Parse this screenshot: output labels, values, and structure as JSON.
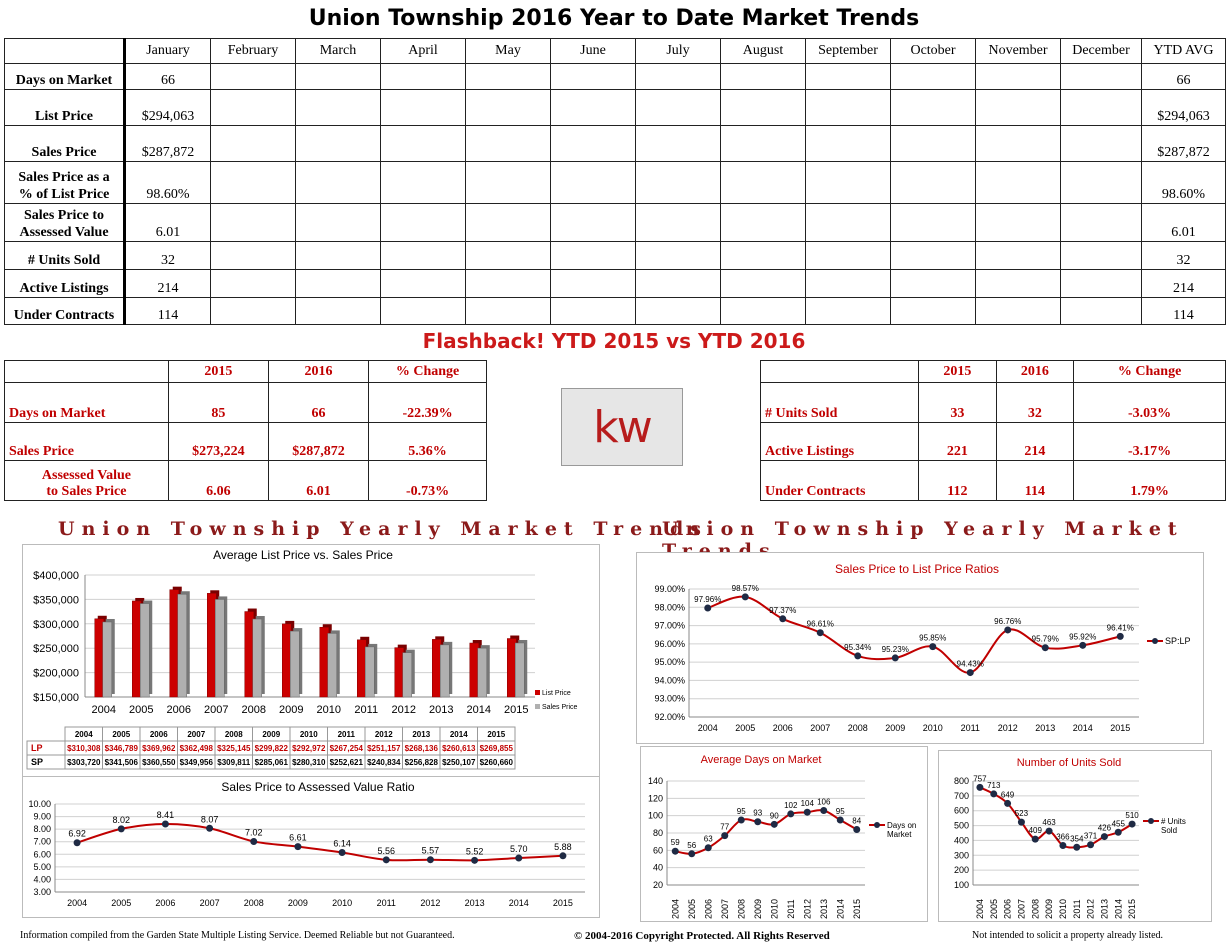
{
  "title": "Union Township 2016 Year to Date Market Trends",
  "main_table": {
    "headers": [
      "January",
      "February",
      "March",
      "April",
      "May",
      "June",
      "July",
      "August",
      "September",
      "October",
      "November",
      "December",
      "YTD AVG"
    ],
    "rows": [
      {
        "label_lines": [
          "Days on Market"
        ],
        "jan": "66",
        "ytd": "66"
      },
      {
        "label_lines": [
          "List Price"
        ],
        "jan": "$294,063",
        "ytd": "$294,063"
      },
      {
        "label_lines": [
          "Sales Price"
        ],
        "jan": "$287,872",
        "ytd": "$287,872"
      },
      {
        "label_lines": [
          "Sales Price as a",
          "% of List Price"
        ],
        "jan": "98.60%",
        "ytd": "98.60%"
      },
      {
        "label_lines": [
          "Sales Price to",
          "Assessed Value"
        ],
        "jan": "6.01",
        "ytd": "6.01"
      },
      {
        "label_lines": [
          "# Units Sold"
        ],
        "jan": "32",
        "ytd": "32"
      },
      {
        "label_lines": [
          "Active Listings"
        ],
        "jan": "214",
        "ytd": "214"
      },
      {
        "label_lines": [
          "Under Contracts"
        ],
        "jan": "114",
        "ytd": "114"
      }
    ]
  },
  "flashback": {
    "title": "Flashback!  YTD 2015 vs YTD 2016",
    "headers": [
      "2015",
      "2016",
      "% Change"
    ],
    "left": [
      {
        "label_lines": [
          "Days on Market"
        ],
        "y2015": "85",
        "y2016": "66",
        "change": "-22.39%"
      },
      {
        "label_lines": [
          "Sales Price"
        ],
        "y2015": "$273,224",
        "y2016": "$287,872",
        "change": "5.36%"
      },
      {
        "label_lines": [
          "Assessed Value",
          "to Sales Price"
        ],
        "y2015": "6.06",
        "y2016": "6.01",
        "change": "-0.73%"
      }
    ],
    "right": [
      {
        "label_lines": [
          "# Units Sold"
        ],
        "y2015": "33",
        "y2016": "32",
        "change": "-3.03%"
      },
      {
        "label_lines": [
          "Active Listings"
        ],
        "y2015": "221",
        "y2016": "214",
        "change": "-3.17%"
      },
      {
        "label_lines": [
          "Under Contracts"
        ],
        "y2015": "112",
        "y2016": "114",
        "change": "1.79%"
      }
    ],
    "logo_text": "kw"
  },
  "section_title_left": "Union Township Yearly Market Trends",
  "section_title_right": "Union Township Yearly Market Trends",
  "chart_data": [
    {
      "type": "bar",
      "title": "Average List Price vs. Sales Price",
      "categories": [
        "2004",
        "2005",
        "2006",
        "2007",
        "2008",
        "2009",
        "2010",
        "2011",
        "2012",
        "2013",
        "2014",
        "2015"
      ],
      "series": [
        {
          "name": "List Price",
          "color": "#cc0000",
          "values": [
            310308,
            346789,
            369962,
            362498,
            325145,
            299822,
            292972,
            267254,
            251157,
            268136,
            260613,
            269855
          ],
          "labels": [
            "$310,308",
            "$346,789",
            "$369,962",
            "$362,498",
            "$325,145",
            "$299,822",
            "$292,972",
            "$267,254",
            "$251,157",
            "$268,136",
            "$260,613",
            "$269,855"
          ]
        },
        {
          "name": "Sales Price",
          "color": "#b0b0b0",
          "values": [
            303720,
            341506,
            360550,
            349956,
            309811,
            285061,
            280310,
            252621,
            240834,
            256828,
            250107,
            260660
          ],
          "labels": [
            "$303,720",
            "$341,506",
            "$360,550",
            "$349,956",
            "$309,811",
            "$285,061",
            "$280,310",
            "$252,621",
            "$240,834",
            "$256,828",
            "$250,107",
            "$260,660"
          ]
        }
      ],
      "yticks": [
        "$150,000",
        "$200,000",
        "$250,000",
        "$300,000",
        "$350,000",
        "$400,000"
      ],
      "ylim": [
        150000,
        400000
      ],
      "table_row_labels": [
        "LP",
        "SP"
      ],
      "legend": "right"
    },
    {
      "type": "line",
      "title": "Sales Price to Assessed Value Ratio",
      "categories": [
        "2004",
        "2005",
        "2006",
        "2007",
        "2008",
        "2009",
        "2010",
        "2011",
        "2012",
        "2013",
        "2014",
        "2015"
      ],
      "values": [
        6.92,
        8.02,
        8.41,
        8.07,
        7.02,
        6.61,
        6.14,
        5.56,
        5.57,
        5.52,
        5.7,
        5.88
      ],
      "labels": [
        "6.92",
        "8.02",
        "8.41",
        "8.07",
        "7.02",
        "6.61",
        "6.14",
        "5.56",
        "5.57",
        "5.52",
        "5.70",
        "5.88"
      ],
      "yticks": [
        "3.00",
        "4.00",
        "5.00",
        "6.00",
        "7.00",
        "8.00",
        "9.00",
        "10.00"
      ],
      "ylim": [
        3,
        10
      ]
    },
    {
      "type": "line",
      "title": "Sales Price to List Price Ratios",
      "categories": [
        "2004",
        "2005",
        "2006",
        "2007",
        "2008",
        "2009",
        "2010",
        "2011",
        "2012",
        "2013",
        "2014",
        "2015"
      ],
      "values": [
        97.96,
        98.57,
        97.37,
        96.61,
        95.34,
        95.23,
        95.85,
        94.43,
        96.76,
        95.79,
        95.92,
        96.41
      ],
      "labels": [
        "97.96%",
        "98.57%",
        "97.37%",
        "96.61%",
        "95.34%",
        "95.23%",
        "95.85%",
        "94.43%",
        "96.76%",
        "95.79%",
        "95.92%",
        "96.41%"
      ],
      "yticks": [
        "92.00%",
        "93.00%",
        "94.00%",
        "95.00%",
        "96.00%",
        "97.00%",
        "98.00%",
        "99.00%"
      ],
      "ylim": [
        92,
        99
      ],
      "legend": "SP:LP"
    },
    {
      "type": "line",
      "title": "Average Days on Market",
      "categories": [
        "2004",
        "2005",
        "2006",
        "2007",
        "2008",
        "2009",
        "2010",
        "2011",
        "2012",
        "2013",
        "2014",
        "2015"
      ],
      "values": [
        59,
        56,
        63,
        77,
        95,
        93,
        90,
        102,
        104,
        106,
        95,
        84
      ],
      "labels": [
        "59",
        "56",
        "63",
        "77",
        "95",
        "93",
        "90",
        "102",
        "104",
        "106",
        "95",
        "84"
      ],
      "yticks": [
        "20",
        "40",
        "60",
        "80",
        "100",
        "120",
        "140"
      ],
      "ylim": [
        20,
        140
      ],
      "legend": "Days on Market"
    },
    {
      "type": "line",
      "title": "Number of Units Sold",
      "categories": [
        "2004",
        "2005",
        "2006",
        "2007",
        "2008",
        "2009",
        "2010",
        "2011",
        "2012",
        "2013",
        "2014",
        "2015"
      ],
      "values": [
        757,
        713,
        649,
        523,
        409,
        463,
        366,
        354,
        371,
        426,
        455,
        510
      ],
      "labels": [
        "757",
        "713",
        "649",
        "523",
        "409",
        "463",
        "366",
        "354",
        "371",
        "426",
        "455",
        "510"
      ],
      "yticks": [
        "100",
        "200",
        "300",
        "400",
        "500",
        "600",
        "700",
        "800"
      ],
      "ylim": [
        100,
        800
      ],
      "legend": "# Units Sold"
    }
  ],
  "footer": {
    "left": "Information compiled from the Garden State Multiple Listing Service.  Deemed Reliable but not Guaranteed.",
    "center": "© 2004-2016 Copyright Protected.  All Rights Reserved",
    "right": "Not intended to solicit a property already listed."
  }
}
